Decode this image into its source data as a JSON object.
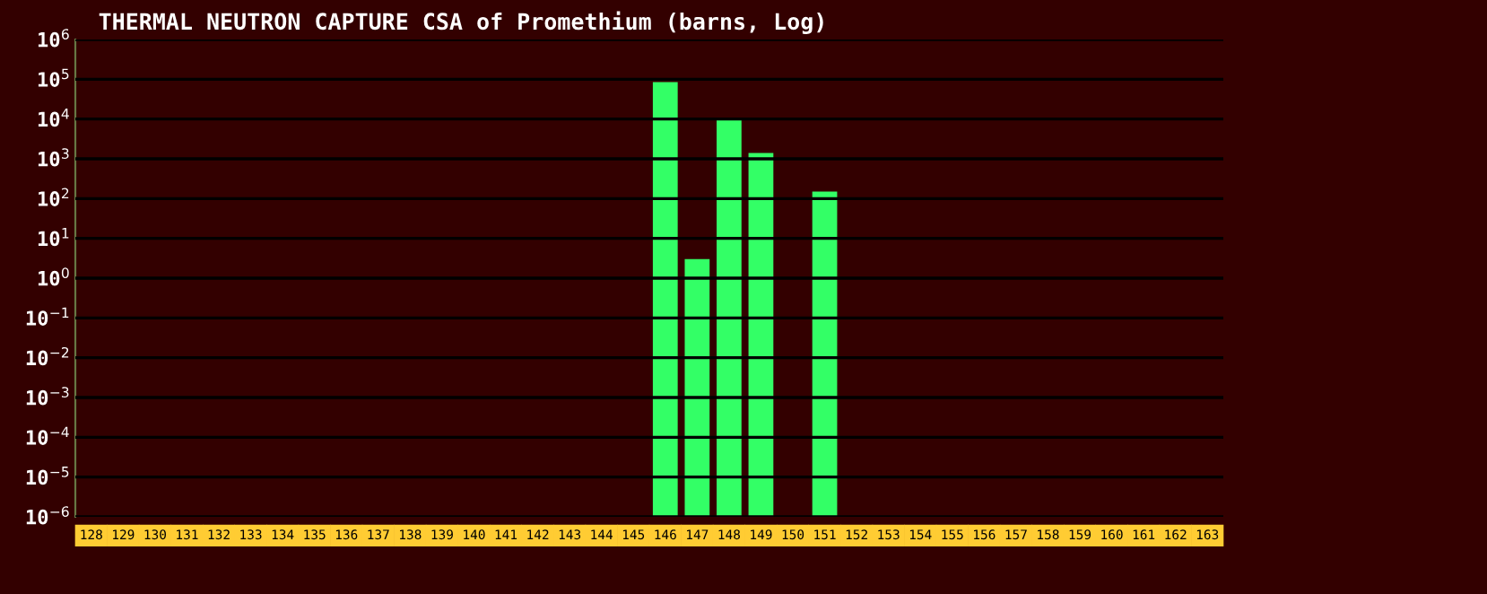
{
  "chart_data": {
    "type": "bar",
    "title": "THERMAL NEUTRON CAPTURE CSA of Promethium (barns, Log)",
    "categories": [
      "128",
      "129",
      "130",
      "131",
      "132",
      "133",
      "134",
      "135",
      "136",
      "137",
      "138",
      "139",
      "140",
      "141",
      "142",
      "143",
      "144",
      "145",
      "146",
      "147",
      "148",
      "149",
      "150",
      "151",
      "152",
      "153",
      "154",
      "155",
      "156",
      "157",
      "158",
      "159",
      "160",
      "161",
      "162",
      "163"
    ],
    "values": [
      null,
      null,
      null,
      null,
      null,
      null,
      null,
      null,
      null,
      null,
      null,
      null,
      null,
      null,
      null,
      null,
      null,
      null,
      85000,
      3,
      9600,
      1400,
      null,
      150,
      null,
      null,
      null,
      null,
      null,
      null,
      null,
      null,
      null,
      null,
      null,
      null
    ],
    "color": "#33ff66",
    "log": true,
    "ylim": [
      1e-06,
      1000000.0
    ],
    "yticks": [
      {
        "value": 1e-06,
        "label": "10$^{−6}$"
      },
      {
        "value": 1e-05,
        "label": "10$^{−5}$"
      },
      {
        "value": 0.0001,
        "label": "10$^{−4}$"
      },
      {
        "value": 0.001,
        "label": "10$^{−3}$"
      },
      {
        "value": 0.01,
        "label": "10$^{−2}$"
      },
      {
        "value": 0.1,
        "label": "10$^{−1}$"
      },
      {
        "value": 1,
        "label": "10$^{0}$"
      },
      {
        "value": 10,
        "label": "10$^{1}$"
      },
      {
        "value": 100,
        "label": "10$^{2}$"
      },
      {
        "value": 1000,
        "label": "10$^{3}$"
      },
      {
        "value": 10000,
        "label": "10$^{4}$"
      },
      {
        "value": 100000,
        "label": "10$^{5}$"
      },
      {
        "value": 1000000,
        "label": "10$^{6}$"
      }
    ],
    "grid": "y"
  }
}
